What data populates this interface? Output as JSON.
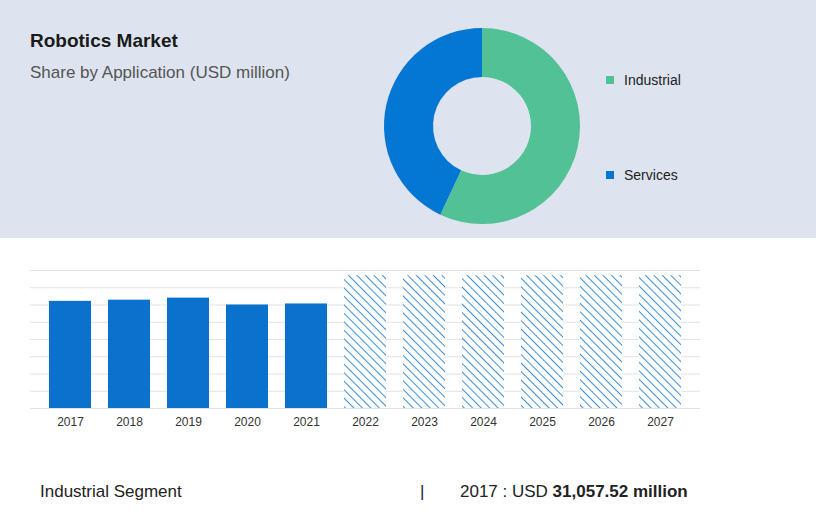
{
  "chart_data": [
    {
      "type": "pie",
      "title": "Robotics Market",
      "subtitle": "Share by Application (USD million)",
      "categories": [
        "Industrial",
        "Services"
      ],
      "values": [
        57,
        43
      ],
      "colors": [
        "#52c195",
        "#0477d4"
      ],
      "legend": "right"
    },
    {
      "type": "bar",
      "categories": [
        "2017",
        "2018",
        "2019",
        "2020",
        "2021",
        "2022",
        "2023",
        "2024",
        "2025",
        "2026",
        "2027"
      ],
      "series": [
        {
          "color": "#0a72cc",
          "values": [
            31057.52,
            31400,
            32000,
            30000,
            30300,
            null,
            null,
            null,
            null,
            null,
            null
          ]
        },
        {
          "color": "#0a72cc",
          "line_style": "hatched",
          "values": [
            null,
            null,
            null,
            null,
            null,
            38500,
            38500,
            38500,
            38500,
            38500,
            38500
          ]
        }
      ],
      "ylim": [
        0,
        40000
      ],
      "yticks": [
        0,
        5000,
        10000,
        15000,
        20000,
        25000,
        30000,
        35000,
        40000
      ],
      "grid": true,
      "tick_labels": "x"
    }
  ],
  "footer": {
    "left": "Industrial Segment",
    "separator": "|",
    "right_prefix": "2017 : USD",
    "right_value": "31,057.52 million"
  }
}
